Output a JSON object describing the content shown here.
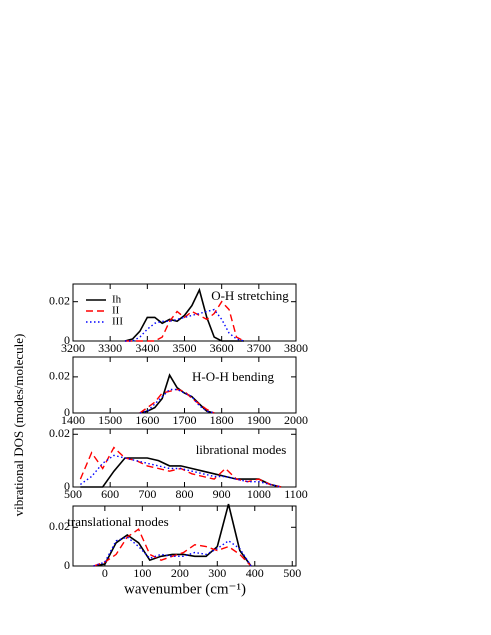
{
  "ylabel": "vibrational DOS (modes/molecule)",
  "xlabel": "wavenumber (cm⁻¹)",
  "chart_data": [
    {
      "type": "line",
      "annotation": "O-H stretching",
      "legend": "upper left",
      "xlim": [
        3200,
        3800
      ],
      "xticks": [
        3200,
        3300,
        3400,
        3500,
        3600,
        3700,
        3800
      ],
      "ylim": [
        0,
        0.029
      ],
      "yticks": [
        0,
        0.02
      ],
      "x": [
        3340,
        3360,
        3380,
        3400,
        3420,
        3440,
        3460,
        3480,
        3500,
        3520,
        3540,
        3560,
        3580,
        3600,
        3620,
        3640,
        3660
      ],
      "series": [
        {
          "name": "Ih",
          "color": "#000000",
          "style": "solid",
          "values": [
            0,
            0.001,
            0.005,
            0.012,
            0.012,
            0.009,
            0.011,
            0.01,
            0.013,
            0.018,
            0.026,
            0.012,
            0.002,
            0,
            0,
            0,
            0
          ]
        },
        {
          "name": "II",
          "color": "#ff0000",
          "style": "dashed",
          "values": [
            0,
            0,
            0,
            0,
            0,
            0.002,
            0.01,
            0.015,
            0.012,
            0.015,
            0.013,
            0.011,
            0.014,
            0.02,
            0.016,
            0.002,
            0
          ]
        },
        {
          "name": "III",
          "color": "#0000ff",
          "style": "dotted",
          "values": [
            0,
            0,
            0.002,
            0.006,
            0.009,
            0.01,
            0.01,
            0.011,
            0.012,
            0.013,
            0.014,
            0.015,
            0.016,
            0.011,
            0.004,
            0.001,
            0
          ]
        }
      ]
    },
    {
      "type": "line",
      "annotation": "H-O-H bending",
      "xlim": [
        1400,
        2000
      ],
      "xticks": [
        1400,
        1500,
        1600,
        1700,
        1800,
        1900,
        2000
      ],
      "ylim": [
        0,
        0.031
      ],
      "yticks": [
        0,
        0.02
      ],
      "x": [
        1580,
        1600,
        1620,
        1640,
        1660,
        1680,
        1700,
        1720,
        1740,
        1760,
        1780
      ],
      "series": [
        {
          "name": "Ih",
          "color": "#000000",
          "style": "solid",
          "values": [
            0,
            0.001,
            0.003,
            0.008,
            0.021,
            0.014,
            0.011,
            0.009,
            0.005,
            0.001,
            0
          ]
        },
        {
          "name": "II",
          "color": "#ff0000",
          "style": "dashed",
          "values": [
            0,
            0.003,
            0.006,
            0.011,
            0.012,
            0.013,
            0.012,
            0.008,
            0.005,
            0.002,
            0
          ]
        },
        {
          "name": "III",
          "color": "#0000ff",
          "style": "dotted",
          "values": [
            0,
            0.001,
            0.005,
            0.009,
            0.013,
            0.013,
            0.011,
            0.009,
            0.004,
            0.001,
            0
          ]
        }
      ]
    },
    {
      "type": "line",
      "annotation": "librational modes",
      "xlim": [
        500,
        1100
      ],
      "xticks": [
        500,
        600,
        700,
        800,
        900,
        1000,
        1100
      ],
      "ylim": [
        0,
        0.022
      ],
      "yticks": [
        0,
        0.02
      ],
      "x": [
        520,
        550,
        580,
        610,
        640,
        670,
        700,
        730,
        760,
        790,
        820,
        850,
        880,
        910,
        940,
        970,
        1000,
        1030,
        1060
      ],
      "series": [
        {
          "name": "Ih",
          "color": "#000000",
          "style": "solid",
          "values": [
            0,
            0,
            0,
            0.006,
            0.011,
            0.011,
            0.011,
            0.01,
            0.008,
            0.008,
            0.007,
            0.006,
            0.005,
            0.004,
            0.003,
            0.003,
            0.003,
            0.001,
            0
          ]
        },
        {
          "name": "II",
          "color": "#ff0000",
          "style": "dashed",
          "values": [
            0.003,
            0.013,
            0.007,
            0.015,
            0.011,
            0.01,
            0.008,
            0.007,
            0.006,
            0.007,
            0.005,
            0.004,
            0.003,
            0.007,
            0.003,
            0.002,
            0.003,
            0.001,
            0
          ]
        },
        {
          "name": "III",
          "color": "#0000ff",
          "style": "dotted",
          "values": [
            0.001,
            0.004,
            0.009,
            0.012,
            0.011,
            0.01,
            0.009,
            0.008,
            0.007,
            0.007,
            0.006,
            0.005,
            0.004,
            0.004,
            0.003,
            0.002,
            0.002,
            0.001,
            0
          ]
        }
      ]
    },
    {
      "type": "line",
      "annotation": "translational modes",
      "xlim": [
        -85,
        510
      ],
      "xticks": [
        0,
        100,
        200,
        300,
        400,
        500
      ],
      "ylim": [
        0,
        0.031
      ],
      "yticks": [
        0,
        0.02
      ],
      "x": [
        -30,
        0,
        30,
        60,
        90,
        120,
        150,
        180,
        210,
        240,
        270,
        300,
        330,
        360,
        390
      ],
      "series": [
        {
          "name": "Ih",
          "color": "#000000",
          "style": "solid",
          "values": [
            0,
            0.001,
            0.012,
            0.016,
            0.012,
            0.003,
            0.005,
            0.006,
            0.006,
            0.005,
            0.005,
            0.01,
            0.032,
            0.008,
            0
          ]
        },
        {
          "name": "II",
          "color": "#ff0000",
          "style": "dashed",
          "values": [
            0,
            0.002,
            0.006,
            0.015,
            0.019,
            0.006,
            0.003,
            0.005,
            0.007,
            0.011,
            0.01,
            0.008,
            0.01,
            0.006,
            0
          ]
        },
        {
          "name": "III",
          "color": "#0000ff",
          "style": "dotted",
          "values": [
            0,
            0.002,
            0.013,
            0.015,
            0.01,
            0.004,
            0.006,
            0.005,
            0.005,
            0.007,
            0.006,
            0.009,
            0.013,
            0.009,
            0
          ]
        }
      ]
    }
  ]
}
